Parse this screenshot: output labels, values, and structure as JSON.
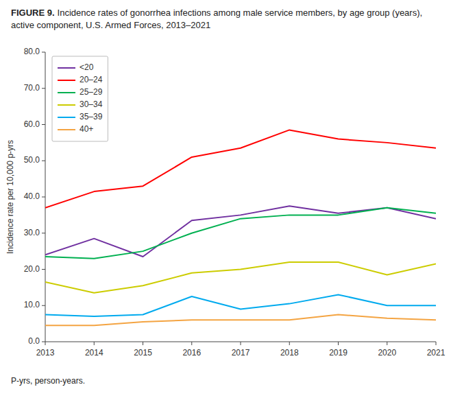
{
  "chart_data": {
    "type": "line",
    "title": "FIGURE 9.",
    "subtitle": "Incidence rates of gonorrhea infections among male service members, by age group (years), active component, U.S. Armed Forces, 2013–2021",
    "ylabel": "Incidence rate per 10,000 p-yrs",
    "annotations": [
      "P-yrs, person-years."
    ],
    "x": [
      2013,
      2014,
      2015,
      2016,
      2017,
      2018,
      2019,
      2020,
      2021
    ],
    "series": [
      {
        "name": "<20",
        "color": "#7030a0",
        "values": [
          24.0,
          28.5,
          23.5,
          33.5,
          35.0,
          37.5,
          35.5,
          37.0,
          34.0
        ]
      },
      {
        "name": "20–24",
        "color": "#ff0000",
        "values": [
          37.0,
          41.5,
          43.0,
          51.0,
          53.5,
          58.5,
          56.0,
          55.0,
          53.5
        ]
      },
      {
        "name": "25–29",
        "color": "#00b050",
        "values": [
          23.5,
          23.0,
          25.0,
          30.0,
          34.0,
          35.0,
          35.0,
          37.0,
          35.5
        ]
      },
      {
        "name": "30–34",
        "color": "#cccc00",
        "values": [
          16.5,
          13.5,
          15.5,
          19.0,
          20.0,
          22.0,
          22.0,
          18.5,
          21.5
        ]
      },
      {
        "name": "35–39",
        "color": "#00aaee",
        "values": [
          7.5,
          7.0,
          7.5,
          12.5,
          9.0,
          10.5,
          13.0,
          10.0,
          10.0
        ]
      },
      {
        "name": "40+",
        "color": "#f4a442",
        "values": [
          4.5,
          4.5,
          5.5,
          6.0,
          6.0,
          6.0,
          7.5,
          6.5,
          6.0
        ]
      }
    ],
    "xlim": [
      2013,
      2021
    ],
    "xticks": [
      2013,
      2014,
      2015,
      2016,
      2017,
      2018,
      2019,
      2020,
      2021
    ],
    "ylim": [
      0.0,
      80.0
    ],
    "yticks": [
      {
        "value": 0.0,
        "label": "0.0"
      },
      {
        "value": 10.0,
        "label": "10.0"
      },
      {
        "value": 20.0,
        "label": "20.0"
      },
      {
        "value": 30.0,
        "label": "30.0"
      },
      {
        "value": 40.0,
        "label": "40.0"
      },
      {
        "value": 50.0,
        "label": "50.0"
      },
      {
        "value": 60.0,
        "label": "60.0"
      },
      {
        "value": 70.0,
        "label": "70.0"
      },
      {
        "value": 80.0,
        "label": "80.0"
      }
    ],
    "grid": false,
    "legend": "upper left"
  }
}
